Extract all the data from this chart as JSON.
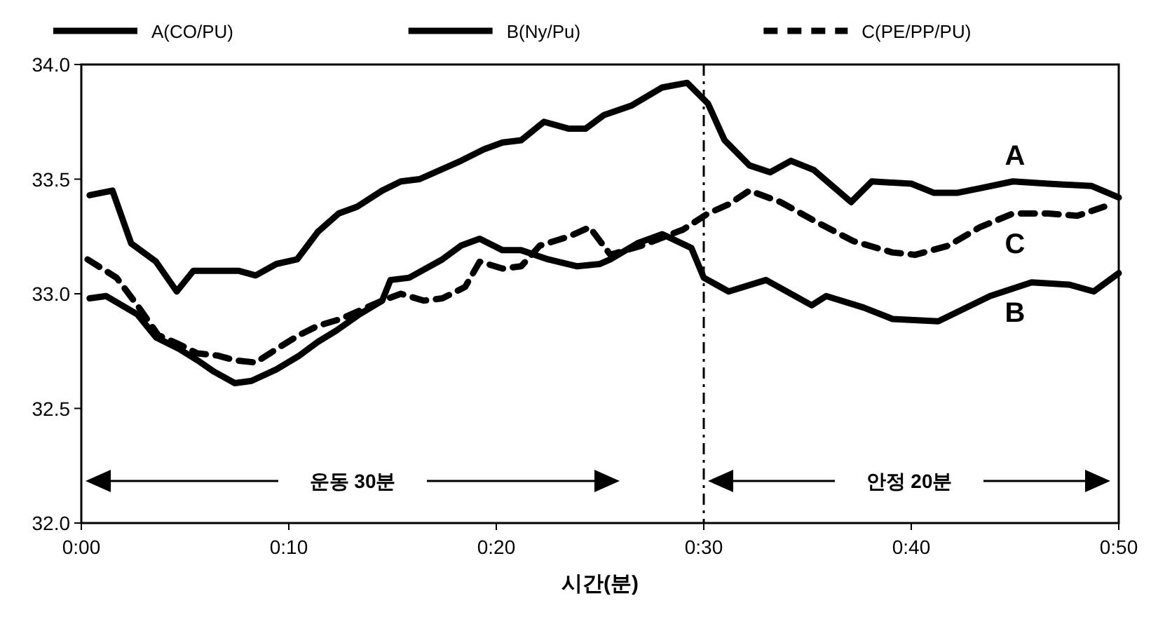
{
  "chart_data": {
    "type": "line",
    "xlabel": "시간(분)",
    "xlim": [
      0,
      50
    ],
    "xticks": [
      {
        "value": 0,
        "label": "0:00"
      },
      {
        "value": 10,
        "label": "0:10"
      },
      {
        "value": 20,
        "label": "0:20"
      },
      {
        "value": 30,
        "label": "0:30"
      },
      {
        "value": 40,
        "label": "0:40"
      },
      {
        "value": 50,
        "label": "0:50"
      }
    ],
    "ylim": [
      32,
      34
    ],
    "yticks": [
      {
        "value": 32,
        "label": "32.0"
      },
      {
        "value": 32.5,
        "label": "32.5"
      },
      {
        "value": 33,
        "label": "33.0"
      },
      {
        "value": 33.5,
        "label": "33.5"
      },
      {
        "value": 34,
        "label": "34.0"
      }
    ],
    "grid": false,
    "legend": "top",
    "marker": "none",
    "series": [
      {
        "name": "A(CO/PU)",
        "color": "#000000",
        "line_style": "solid",
        "x": [
          0.4,
          1.5,
          2.4,
          3.6,
          4.6,
          5.4,
          7.6,
          8.4,
          9.4,
          10.4,
          11.4,
          12.4,
          13.3,
          14.5,
          15.4,
          16.3,
          18.3,
          19.4,
          20.3,
          21.2,
          22.3,
          23.5,
          24.3,
          25.2,
          26.5,
          28.0,
          29.2,
          30.2,
          31.0,
          32.2,
          33.2,
          34.2,
          35.3,
          37.1,
          38.1,
          40.0,
          41.1,
          42.2,
          43.3,
          44.9,
          46.6,
          48.7,
          50
        ],
        "values": [
          33.43,
          33.45,
          33.22,
          33.14,
          33.01,
          33.1,
          33.1,
          33.08,
          33.13,
          33.15,
          33.27,
          33.35,
          33.38,
          33.45,
          33.49,
          33.5,
          33.58,
          33.63,
          33.66,
          33.67,
          33.75,
          33.72,
          33.72,
          33.78,
          33.82,
          33.9,
          33.92,
          33.83,
          33.67,
          33.56,
          33.53,
          33.58,
          33.54,
          33.4,
          33.49,
          33.48,
          33.44,
          33.44,
          33.46,
          33.49,
          33.48,
          33.47,
          33.42
        ]
      },
      {
        "name": "B(Ny/Pu)",
        "color": "#000000",
        "line_style": "solid",
        "x": [
          0.4,
          1.2,
          2.7,
          3.6,
          4.7,
          5.6,
          6.4,
          7.4,
          8.2,
          9.4,
          10.5,
          11.4,
          12.3,
          13.4,
          14.5,
          14.9,
          15.8,
          17.4,
          18.3,
          19.2,
          20.3,
          21.2,
          22.5,
          23.9,
          25.0,
          25.5,
          26.8,
          28.0,
          29.4,
          30.0,
          31.2,
          33.0,
          35.2,
          35.9,
          37.7,
          39.1,
          41.3,
          43.8,
          45.8,
          47.6,
          48.8,
          50
        ],
        "values": [
          32.98,
          32.99,
          32.91,
          32.81,
          32.76,
          32.71,
          32.66,
          32.61,
          32.62,
          32.67,
          32.73,
          32.79,
          32.84,
          32.91,
          32.97,
          33.06,
          33.07,
          33.15,
          33.21,
          33.24,
          33.19,
          33.19,
          33.15,
          33.12,
          33.13,
          33.15,
          33.22,
          33.26,
          33.2,
          33.07,
          33.01,
          33.06,
          32.95,
          32.99,
          32.94,
          32.89,
          32.88,
          32.99,
          33.05,
          33.04,
          33.01,
          33.09
        ]
      },
      {
        "name": "C(PE/PP/PU)",
        "color": "#000000",
        "line_style": "dashed",
        "x": [
          0.3,
          1.7,
          2.7,
          3.7,
          4.7,
          5.6,
          6.6,
          7.4,
          8.4,
          9.6,
          10.5,
          11.4,
          12.5,
          14.5,
          15.4,
          16.5,
          17.4,
          18.5,
          19.2,
          20.3,
          21.2,
          22.1,
          23.5,
          24.5,
          25.5,
          27.0,
          29.0,
          30.2,
          31.2,
          32.2,
          33.7,
          35.5,
          37.2,
          39.1,
          40.2,
          41.8,
          43.3,
          44.9,
          46.6,
          48.0,
          49.3
        ],
        "values": [
          33.15,
          33.07,
          32.95,
          32.82,
          32.78,
          32.74,
          32.73,
          32.71,
          32.7,
          32.77,
          32.82,
          32.86,
          32.89,
          32.97,
          33.0,
          32.97,
          32.98,
          33.03,
          33.14,
          33.11,
          33.12,
          33.21,
          33.25,
          33.29,
          33.17,
          33.21,
          33.28,
          33.35,
          33.39,
          33.45,
          33.4,
          33.31,
          33.23,
          33.18,
          33.17,
          33.21,
          33.29,
          33.35,
          33.35,
          33.34,
          33.38
        ]
      }
    ],
    "ref_lines": [
      {
        "axis": "x",
        "value": 30,
        "line_style": "dashdot",
        "color": "#000000"
      }
    ],
    "annotations": [
      "A",
      "B",
      "C",
      "운동 30분",
      "안정 20분"
    ]
  }
}
